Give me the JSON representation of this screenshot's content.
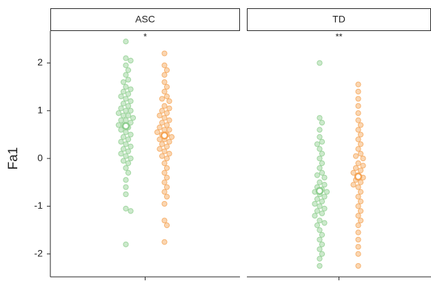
{
  "chart_data": {
    "type": "beeswarm",
    "y_label": "Fa1",
    "ylim": [
      -2.48,
      2.67
    ],
    "yticks": [
      -2,
      -1,
      0,
      1,
      2
    ],
    "panels": [
      {
        "title": "ASC",
        "annotation": "*",
        "series": [
          {
            "color": "#8fce8f",
            "mean": 0.68,
            "values": [
              2.45,
              2.1,
              2.05,
              1.95,
              1.85,
              1.75,
              1.65,
              1.6,
              1.5,
              1.45,
              1.4,
              1.35,
              1.3,
              1.25,
              1.2,
              1.15,
              1.1,
              1.05,
              1.0,
              1.0,
              0.95,
              0.9,
              0.9,
              0.85,
              0.8,
              0.8,
              0.75,
              0.7,
              0.7,
              0.65,
              0.6,
              0.55,
              0.5,
              0.45,
              0.4,
              0.35,
              0.3,
              0.25,
              0.2,
              0.15,
              0.1,
              0.05,
              0.0,
              -0.05,
              -0.1,
              -0.2,
              -0.3,
              -0.45,
              -0.6,
              -0.75,
              -1.05,
              -1.1,
              -1.8
            ]
          },
          {
            "color": "#f5a455",
            "mean": 0.48,
            "values": [
              2.2,
              1.95,
              1.85,
              1.75,
              1.6,
              1.5,
              1.4,
              1.3,
              1.25,
              1.2,
              1.1,
              1.05,
              1.0,
              0.95,
              0.9,
              0.85,
              0.8,
              0.75,
              0.7,
              0.65,
              0.6,
              0.6,
              0.55,
              0.5,
              0.5,
              0.45,
              0.4,
              0.4,
              0.35,
              0.3,
              0.25,
              0.2,
              0.15,
              0.1,
              0.05,
              0.0,
              -0.1,
              -0.2,
              -0.3,
              -0.4,
              -0.5,
              -0.6,
              -0.7,
              -0.8,
              -0.95,
              -1.3,
              -1.4,
              -1.75
            ]
          }
        ]
      },
      {
        "title": "TD",
        "annotation": "**",
        "series": [
          {
            "color": "#8fce8f",
            "mean": -0.68,
            "values": [
              2.0,
              0.85,
              0.75,
              0.6,
              0.45,
              0.35,
              0.3,
              0.2,
              0.1,
              0.0,
              -0.1,
              -0.2,
              -0.3,
              -0.35,
              -0.4,
              -0.5,
              -0.55,
              -0.6,
              -0.65,
              -0.7,
              -0.7,
              -0.75,
              -0.8,
              -0.85,
              -0.9,
              -0.95,
              -1.0,
              -1.05,
              -1.1,
              -1.15,
              -1.2,
              -1.3,
              -1.35,
              -1.4,
              -1.5,
              -1.6,
              -1.7,
              -1.8,
              -1.9,
              -2.0,
              -2.1,
              -2.25
            ]
          },
          {
            "color": "#f5a455",
            "mean": -0.38,
            "values": [
              1.55,
              1.4,
              1.25,
              1.1,
              0.95,
              0.8,
              0.7,
              0.6,
              0.5,
              0.4,
              0.3,
              0.2,
              0.1,
              0.05,
              0.0,
              -0.1,
              -0.15,
              -0.2,
              -0.25,
              -0.3,
              -0.35,
              -0.4,
              -0.45,
              -0.5,
              -0.55,
              -0.6,
              -0.7,
              -0.8,
              -0.9,
              -1.0,
              -1.1,
              -1.2,
              -1.3,
              -1.4,
              -1.55,
              -1.7,
              -1.85,
              -2.0,
              -2.25
            ]
          }
        ]
      }
    ]
  }
}
